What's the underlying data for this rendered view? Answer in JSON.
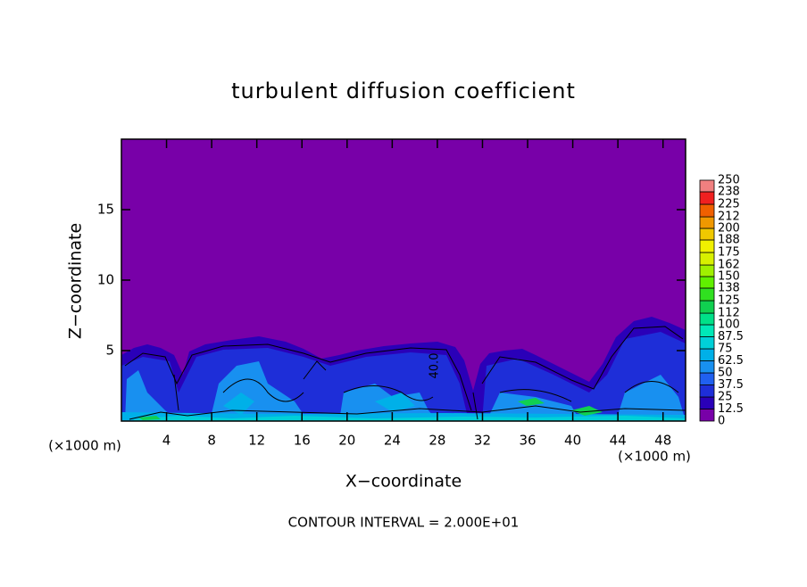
{
  "chart_data": {
    "type": "contour",
    "title": "turbulent diffusion coefficient",
    "x_label": "X−coordinate",
    "y_label": "Z−coordinate",
    "x_unit": "(×1000 m)",
    "y_unit": "(×1000 m)",
    "xlim": [
      0,
      50
    ],
    "ylim": [
      0,
      20
    ],
    "xticks": [
      4,
      8,
      12,
      16,
      20,
      24,
      28,
      32,
      36,
      40,
      44,
      48
    ],
    "yticks": [
      5,
      10,
      15
    ],
    "footer": "CONTOUR INTERVAL = 2.000E+01",
    "contour_labels": [
      "40.0"
    ],
    "colorbar": {
      "levels": [
        0,
        12.5,
        25,
        37.5,
        50,
        62.5,
        75,
        87.5,
        100,
        112,
        125,
        138,
        150,
        162,
        175,
        188,
        200,
        212,
        225,
        238,
        250
      ],
      "colors": [
        "#7800a8",
        "#2a00b8",
        "#1e2ed8",
        "#2060f0",
        "#1890f0",
        "#00b0e8",
        "#00d0d8",
        "#00e8b8",
        "#00e088",
        "#10d050",
        "#30e020",
        "#60f000",
        "#a0f000",
        "#d8f000",
        "#f0f000",
        "#f0c800",
        "#f09800",
        "#f06000",
        "#f02020",
        "#f08080"
      ]
    }
  }
}
